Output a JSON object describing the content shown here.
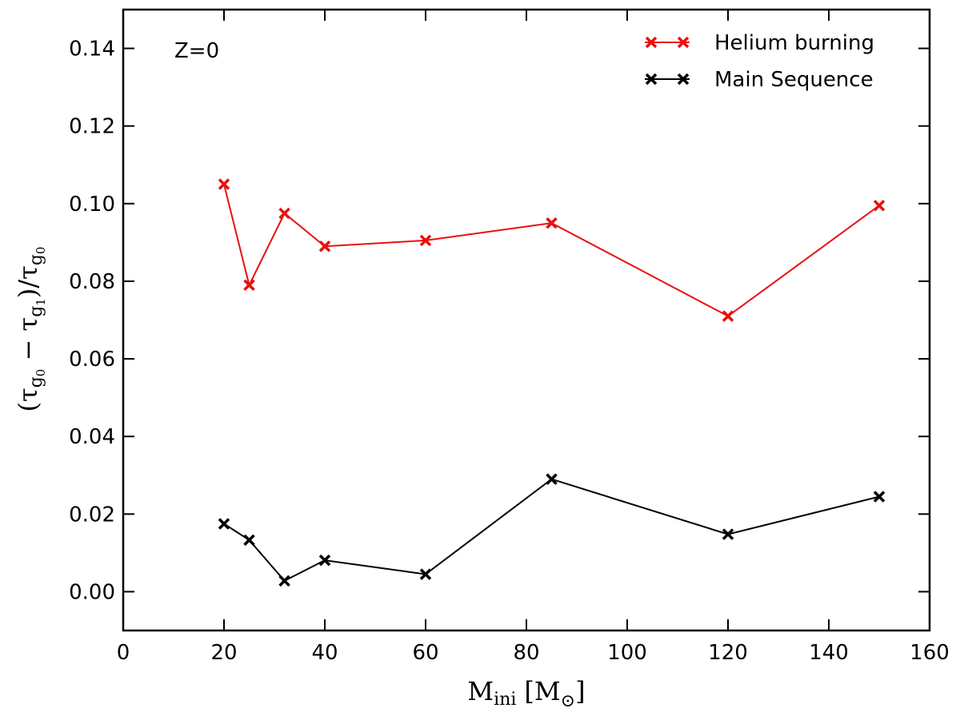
{
  "chart_data": {
    "type": "line",
    "xlabel": "M",
    "xlabel_sub": "ini",
    "xlabel_unit": "[M",
    "xlabel_unit_sub": "⊙",
    "xlabel_unit_close": "]",
    "ylabel_parts": {
      "open": "(τ",
      "g0": "g",
      "g0_sub": "0",
      "minus": " − τ",
      "g1": "g",
      "g1_sub": "1",
      "close": ")/τ",
      "g0b": "g",
      "g0b_sub": "0"
    },
    "xlim": [
      0,
      160
    ],
    "ylim": [
      -0.01,
      0.15
    ],
    "x_ticks": [
      0,
      20,
      40,
      60,
      80,
      100,
      120,
      140,
      160
    ],
    "x_tick_labels": [
      "0",
      "20",
      "40",
      "60",
      "80",
      "100",
      "120",
      "140",
      "160"
    ],
    "y_ticks": [
      0.0,
      0.02,
      0.04,
      0.06,
      0.08,
      0.1,
      0.12,
      0.14
    ],
    "y_tick_labels": [
      "0.00",
      "0.02",
      "0.04",
      "0.06",
      "0.08",
      "0.10",
      "0.12",
      "0.14"
    ],
    "annotation": "Z=0",
    "legend_position": "top-right",
    "grid": false,
    "series": [
      {
        "name": "Helium burning",
        "color": "#e8110f",
        "marker": "x",
        "x": [
          20,
          25,
          32,
          40,
          60,
          85,
          120,
          150
        ],
        "y": [
          0.105,
          0.079,
          0.0975,
          0.089,
          0.0905,
          0.095,
          0.071,
          0.0995
        ]
      },
      {
        "name": "Main Sequence",
        "color": "#000000",
        "marker": "x",
        "x": [
          20,
          25,
          32,
          40,
          60,
          85,
          120,
          150
        ],
        "y": [
          0.0175,
          0.0133,
          0.0028,
          0.0081,
          0.0045,
          0.029,
          0.0148,
          0.0245
        ]
      }
    ]
  }
}
